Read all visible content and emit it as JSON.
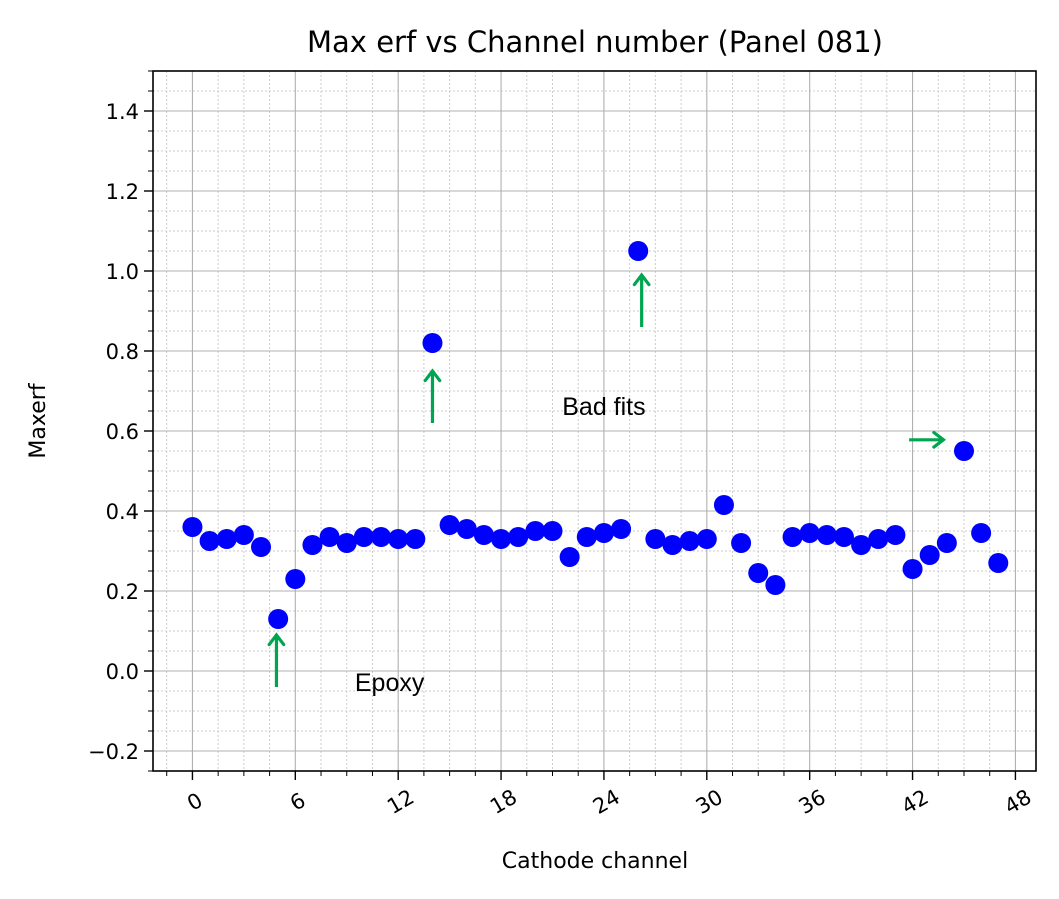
{
  "chart_data": {
    "type": "scatter",
    "title": "Max erf vs Channel number (Panel 081)",
    "xlabel": "Cathode channel",
    "ylabel": "Maxerf",
    "xlim": [
      -2.3,
      49.2
    ],
    "ylim": [
      -0.25,
      1.5
    ],
    "xticks": [
      0,
      6,
      12,
      18,
      24,
      30,
      36,
      42,
      48
    ],
    "yticks": [
      -0.2,
      0.0,
      0.2,
      0.4,
      0.6,
      0.8,
      1.0,
      1.2,
      1.4
    ],
    "ytick_labels": [
      "−0.2",
      "0.0",
      "0.2",
      "0.4",
      "0.6",
      "0.8",
      "1.0",
      "1.2",
      "1.4"
    ],
    "grid": true,
    "marker_color": "#0000ff",
    "annotation_color": "#00a550",
    "series": [
      {
        "x": [
          0,
          1,
          2,
          3,
          4,
          5,
          6,
          7,
          8,
          9,
          10,
          11,
          12,
          13,
          14,
          15,
          16,
          17,
          18,
          19,
          20,
          21,
          22,
          23,
          24,
          25,
          26,
          27,
          28,
          29,
          30,
          31,
          32,
          33,
          34,
          35,
          36,
          37,
          38,
          39,
          40,
          41,
          42,
          43,
          44,
          45,
          46,
          47
        ],
        "y": [
          0.36,
          0.325,
          0.33,
          0.34,
          0.31,
          0.13,
          0.23,
          0.315,
          0.335,
          0.32,
          0.335,
          0.335,
          0.33,
          0.33,
          0.82,
          0.365,
          0.355,
          0.34,
          0.33,
          0.335,
          0.35,
          0.35,
          0.285,
          0.335,
          0.345,
          0.355,
          1.05,
          0.33,
          0.315,
          0.325,
          0.33,
          0.415,
          0.32,
          0.245,
          0.215,
          0.335,
          0.345,
          0.34,
          0.335,
          0.315,
          0.33,
          0.34,
          0.255,
          0.29,
          0.32,
          0.55,
          0.345,
          0.27
        ]
      }
    ],
    "annotations": [
      {
        "text": "Epoxy",
        "x": 11.5,
        "y": -0.05
      },
      {
        "text": "Bad fits",
        "x": 24.0,
        "y": 0.64
      }
    ],
    "arrows": [
      {
        "x1": 4.9,
        "y1": -0.04,
        "x2": 4.9,
        "y2": 0.09
      },
      {
        "x1": 14.0,
        "y1": 0.62,
        "x2": 14.0,
        "y2": 0.75
      },
      {
        "x1": 26.2,
        "y1": 0.86,
        "x2": 26.2,
        "y2": 0.99
      },
      {
        "x1": 41.8,
        "y1": 0.578,
        "x2": 43.8,
        "y2": 0.578
      }
    ]
  }
}
